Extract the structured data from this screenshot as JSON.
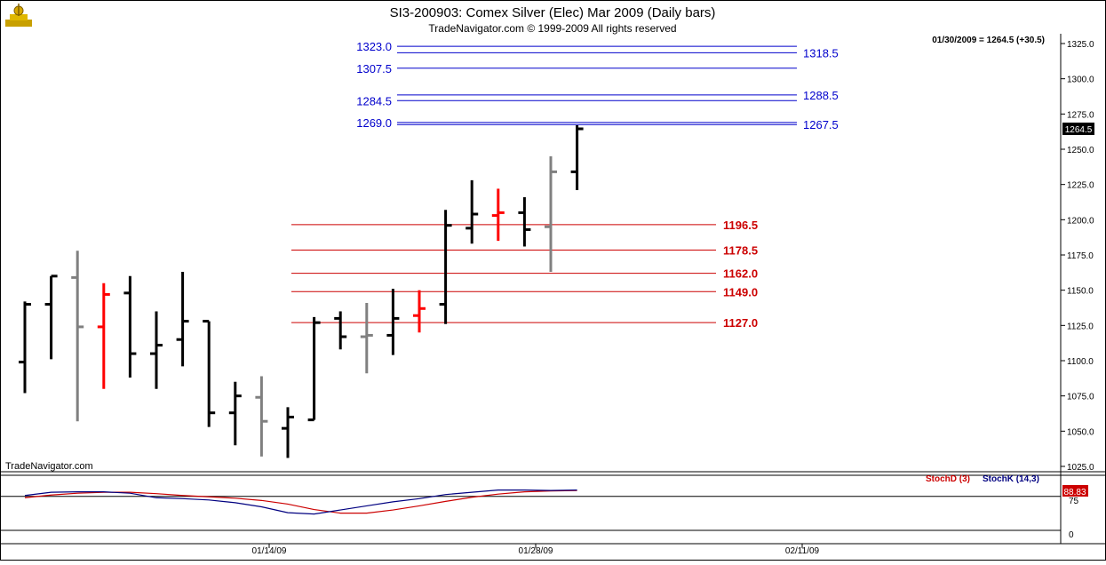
{
  "header": {
    "title": "SI3-200903:  Comex Silver (Elec) Mar 2009  (Daily bars)",
    "subtitle": "TradeNavigator.com © 1999-2009 All rights reserved"
  },
  "last_readout": "01/30/2009 = 1264.5 (+30.5)",
  "last_price_tag": "1264.5",
  "watermark": "TradeNavigator.com",
  "colors": {
    "up": "#000000",
    "down": "#ff0000",
    "neutral": "#808080",
    "resistance": "#0000cc",
    "support": "#cc0000",
    "stoch_d": "#cc0000",
    "stoch_k": "#000080",
    "stoch_tag": "#cc0000"
  },
  "chart_data": [
    {
      "type": "ohlc",
      "y_ticks": [
        "1025.0",
        "1050.0",
        "1075.0",
        "1100.0",
        "1125.0",
        "1150.0",
        "1175.0",
        "1200.0",
        "1225.0",
        "1250.0",
        "1275.0",
        "1300.0",
        "1325.0"
      ],
      "ylim": [
        1012,
        1338
      ],
      "x_ticks": [
        "01/14/09",
        "01/28/09",
        "02/11/09"
      ],
      "bars": [
        {
          "o": 1099,
          "h": 1142,
          "l": 1077,
          "c": 1140,
          "color": "up"
        },
        {
          "o": 1140,
          "h": 1160,
          "l": 1101,
          "c": 1160,
          "color": "up"
        },
        {
          "o": 1159,
          "h": 1178,
          "l": 1057,
          "c": 1124,
          "color": "neutral"
        },
        {
          "o": 1124,
          "h": 1155,
          "l": 1080,
          "c": 1147,
          "color": "down"
        },
        {
          "o": 1148,
          "h": 1160,
          "l": 1088,
          "c": 1105,
          "color": "up"
        },
        {
          "o": 1105,
          "h": 1135,
          "l": 1080,
          "c": 1111,
          "color": "up"
        },
        {
          "o": 1115,
          "h": 1163,
          "l": 1096,
          "c": 1128,
          "color": "up"
        },
        {
          "o": 1128,
          "h": 1128,
          "l": 1053,
          "c": 1063,
          "color": "up"
        },
        {
          "o": 1063,
          "h": 1085,
          "l": 1040,
          "c": 1075,
          "color": "up"
        },
        {
          "o": 1074,
          "h": 1089,
          "l": 1032,
          "c": 1057,
          "color": "neutral"
        },
        {
          "o": 1052,
          "h": 1067,
          "l": 1031,
          "c": 1060,
          "color": "up"
        },
        {
          "o": 1058,
          "h": 1131,
          "l": 1058,
          "c": 1127,
          "color": "up"
        },
        {
          "o": 1130,
          "h": 1135,
          "l": 1108,
          "c": 1117,
          "color": "up"
        },
        {
          "o": 1117,
          "h": 1141,
          "l": 1091,
          "c": 1118,
          "color": "neutral"
        },
        {
          "o": 1118,
          "h": 1151,
          "l": 1104,
          "c": 1130,
          "color": "up"
        },
        {
          "o": 1132,
          "h": 1150,
          "l": 1120,
          "c": 1137,
          "color": "down"
        },
        {
          "o": 1140,
          "h": 1207,
          "l": 1126,
          "c": 1196,
          "color": "up"
        },
        {
          "o": 1194,
          "h": 1228,
          "l": 1183,
          "c": 1204,
          "color": "up"
        },
        {
          "o": 1203,
          "h": 1222,
          "l": 1185,
          "c": 1205,
          "color": "down"
        },
        {
          "o": 1205,
          "h": 1216,
          "l": 1181,
          "c": 1193,
          "color": "up"
        },
        {
          "o": 1195,
          "h": 1245,
          "l": 1163,
          "c": 1234,
          "color": "neutral"
        },
        {
          "o": 1234,
          "h": 1267,
          "l": 1221,
          "c": 1264.5,
          "color": "up"
        }
      ],
      "resistance_levels": [
        {
          "value": 1323.0,
          "label": "1323.0",
          "side": "left"
        },
        {
          "value": 1318.5,
          "label": "1318.5",
          "side": "right"
        },
        {
          "value": 1307.5,
          "label": "1307.5",
          "side": "left"
        },
        {
          "value": 1288.5,
          "label": "1288.5",
          "side": "right"
        },
        {
          "value": 1284.5,
          "label": "1284.5",
          "side": "left"
        },
        {
          "value": 1269.0,
          "label": "1269.0",
          "side": "left"
        },
        {
          "value": 1267.5,
          "label": "1267.5",
          "side": "right"
        }
      ],
      "support_levels": [
        {
          "value": 1196.5,
          "label": "1196.5"
        },
        {
          "value": 1178.5,
          "label": "1178.5"
        },
        {
          "value": 1162.0,
          "label": "1162.0"
        },
        {
          "value": 1149.0,
          "label": "1149.0"
        },
        {
          "value": 1127.0,
          "label": "1127.0"
        }
      ]
    },
    {
      "type": "line",
      "legend": [
        "StochD (3)",
        "StochK (14,3)"
      ],
      "legend_placement": "top-right",
      "y_ticks": [
        "75",
        "0"
      ],
      "ylim": [
        0,
        100
      ],
      "last_value_tag": "88.83",
      "series": [
        {
          "name": "StochD (3)",
          "values": [
            72,
            78,
            82,
            84,
            84,
            81,
            77,
            74,
            71,
            66,
            58,
            46,
            38,
            38,
            45,
            54,
            64,
            73,
            80,
            85,
            87,
            88
          ]
        },
        {
          "name": "StochK (14,3)",
          "values": [
            77,
            84,
            85,
            85,
            82,
            72,
            70,
            67,
            61,
            52,
            39,
            36,
            45,
            54,
            63,
            70,
            79,
            84,
            89,
            89,
            88,
            89
          ]
        }
      ]
    }
  ]
}
